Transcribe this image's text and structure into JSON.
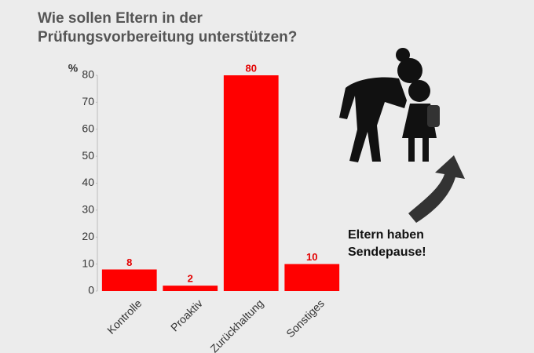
{
  "chart_data": {
    "type": "bar",
    "title": [
      "Wie sollen Eltern in der",
      "Prüfungsvorbereitung unterstützen?"
    ],
    "y_label": "%",
    "categories": [
      "Kontrolle",
      "Proaktiv",
      "Zurückhaltung",
      "Sonstiges"
    ],
    "values": [
      8,
      2,
      80,
      10
    ],
    "color": "#ff0000",
    "ylim": [
      0,
      80
    ],
    "yticks": [
      0,
      10,
      20,
      30,
      40,
      50,
      60,
      70,
      80
    ],
    "annotation": [
      "Eltern haben",
      "Sendepause!"
    ]
  }
}
